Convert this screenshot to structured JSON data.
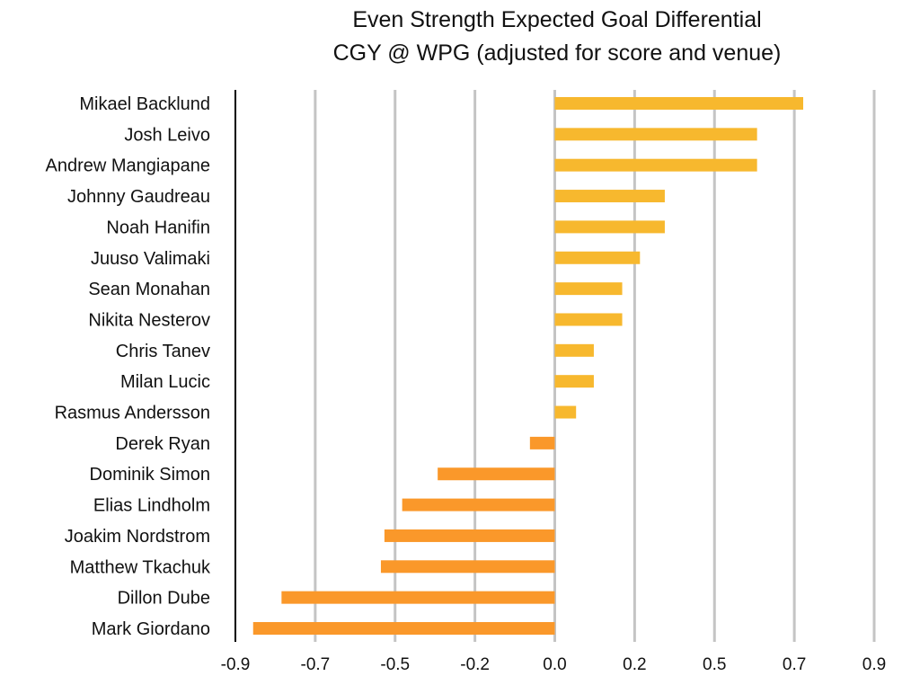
{
  "chart_data": {
    "type": "bar",
    "orientation": "horizontal",
    "title": "Even Strength Expected Goal Differential",
    "subtitle": "CGY @ WPG (adjusted for score and venue)",
    "xlabel": "",
    "ylabel": "",
    "xlim": [
      -0.9,
      0.9
    ],
    "x_ticks": [
      -0.9,
      -0.675,
      -0.45,
      -0.225,
      0,
      0.225,
      0.45,
      0.675,
      0.9
    ],
    "x_tick_labels": [
      "-0.9",
      "-0.7",
      "-0.5",
      "-0.2",
      "0.0",
      "0.2",
      "0.5",
      "0.7",
      "0.9"
    ],
    "grid": "vertical",
    "categories": [
      "Mikael Backlund",
      "Josh Leivo",
      "Andrew Mangiapane",
      "Johnny Gaudreau",
      "Noah Hanifin",
      "Juuso Valimaki",
      "Sean Monahan",
      "Nikita Nesterov",
      "Chris Tanev",
      "Milan Lucic",
      "Rasmus Andersson",
      "Derek Ryan",
      "Dominik Simon",
      "Elias Lindholm",
      "Joakim Nordstrom",
      "Matthew Tkachuk",
      "Dillon Dube",
      "Mark Giordano"
    ],
    "values": [
      0.7,
      0.57,
      0.57,
      0.31,
      0.31,
      0.24,
      0.19,
      0.19,
      0.11,
      0.11,
      0.06,
      -0.07,
      -0.33,
      -0.43,
      -0.48,
      -0.49,
      -0.77,
      -0.85
    ],
    "colors": {
      "positive": "#F7B82E",
      "negative": "#FA982A",
      "grid": "#C4C4C4",
      "axis": "#000000"
    }
  }
}
